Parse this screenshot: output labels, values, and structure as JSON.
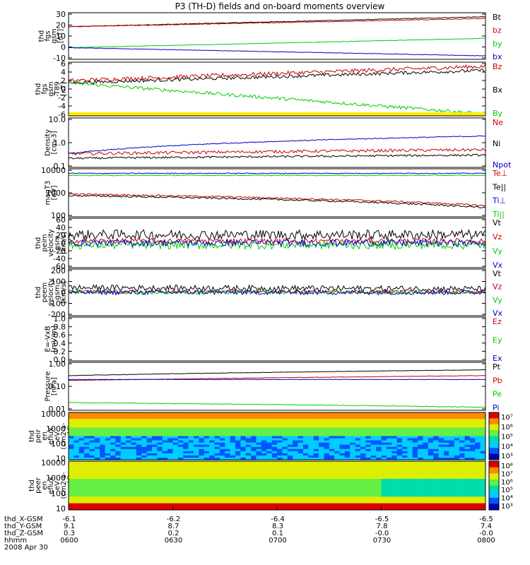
{
  "title": "P3 (TH-D) fields and on-board moments overview",
  "chart_data": [
    {
      "type": "line",
      "ylabel": [
        "thd",
        "fgs",
        "gsm",
        "[nT]"
      ],
      "yticks": [
        "30",
        "20",
        "10",
        "0",
        "-10"
      ],
      "ylim": [
        -10,
        30
      ],
      "series": [
        {
          "name": "Bt",
          "color": "#000000",
          "start": 18,
          "end": 26.5,
          "noise": 0.3
        },
        {
          "name": "bz",
          "color": "#cc0000",
          "start": 18,
          "end": 25,
          "noise": 0.3
        },
        {
          "name": "by",
          "color": "#00cc00",
          "start": 0,
          "end": 8,
          "noise": 0.2
        },
        {
          "name": "bx",
          "color": "#0000cc",
          "start": 0,
          "end": -7,
          "noise": 0.2
        }
      ]
    },
    {
      "type": "line",
      "ylabel": [
        "thd",
        "fgs",
        "gsm",
        "-T89",
        "[nT]"
      ],
      "yticks": [
        "6",
        "4",
        "2",
        "0",
        "-2",
        "-4",
        "-6"
      ],
      "ylim": [
        -7,
        6
      ],
      "series": [
        {
          "name": "Bz",
          "color": "#cc0000",
          "start": 1.5,
          "end": 5,
          "noise": 0.5
        },
        {
          "name": "Bx",
          "color": "#000000",
          "start": 1,
          "end": 4,
          "noise": 0.4
        },
        {
          "name": "By",
          "color": "#00cc00",
          "start": 1,
          "end": -6.5,
          "noise": 0.4
        }
      ]
    },
    {
      "type": "line",
      "ylabel": [
        "Density",
        "[cm-3]"
      ],
      "yticks": [
        "10.0",
        "1.0",
        "0.1"
      ],
      "ylim": [
        0.1,
        15
      ],
      "log": true,
      "series": [
        {
          "name": "Ne",
          "color": "#cc0000",
          "start": 0.4,
          "end": 0.6,
          "noise": 0.15
        },
        {
          "name": "Ni",
          "color": "#000000",
          "start": 0.25,
          "end": 0.35,
          "noise": 0.1
        },
        {
          "name": "Npot",
          "color": "#0000cc",
          "start": 0.4,
          "end": 2.4,
          "noise": 0.05
        }
      ]
    },
    {
      "type": "line",
      "ylabel": [
        "magT3",
        "[eV]"
      ],
      "yticks": [
        "10000",
        "1000",
        "100"
      ],
      "ylim": [
        40,
        12000
      ],
      "log": true,
      "series": [
        {
          "name": "Te⊥",
          "color": "#cc0000",
          "start": 600,
          "end": 150,
          "noise": 0.1
        },
        {
          "name": "Te||",
          "color": "#000000",
          "start": 500,
          "end": 120,
          "noise": 0.1
        },
        {
          "name": "Ti⊥",
          "color": "#0000cc",
          "start": 7000,
          "end": 7000,
          "noise": 0.05
        },
        {
          "name": "Ti||",
          "color": "#00cc00",
          "start": 5500,
          "end": 5500,
          "noise": 0.05
        }
      ]
    },
    {
      "type": "line",
      "ylabel": [
        "thd",
        "peim",
        "velocity",
        "gsm",
        "[km/s]"
      ],
      "yticks": [
        "60",
        "40",
        "20",
        "0",
        "-20",
        "-40",
        "-60"
      ],
      "ylim": [
        -60,
        60
      ],
      "series": [
        {
          "name": "Vt",
          "color": "#000000",
          "start": 20,
          "end": 20,
          "noise": 12
        },
        {
          "name": "Vz",
          "color": "#cc0000",
          "start": 5,
          "end": 5,
          "noise": 6
        },
        {
          "name": "Vy",
          "color": "#00cc00",
          "start": -5,
          "end": -5,
          "noise": 10
        },
        {
          "name": "Vx",
          "color": "#0000cc",
          "start": 0,
          "end": 0,
          "noise": 8
        }
      ]
    },
    {
      "type": "line",
      "ylabel": [
        "thd",
        "peem",
        "velocity",
        "gsm",
        "[km/s]"
      ],
      "yticks": [
        "200",
        "100",
        "0",
        "-100",
        "-200"
      ],
      "ylim": [
        -200,
        200
      ],
      "series": [
        {
          "name": "Vt",
          "color": "#000000",
          "start": 40,
          "end": 30,
          "noise": 25
        },
        {
          "name": "Vz",
          "color": "#cc0000",
          "start": 5,
          "end": 5,
          "noise": 15
        },
        {
          "name": "Vy",
          "color": "#00cc00",
          "start": 0,
          "end": 0,
          "noise": 15
        },
        {
          "name": "Vx",
          "color": "#0000cc",
          "start": 0,
          "end": 0,
          "noise": 20
        }
      ]
    },
    {
      "type": "line",
      "ylabel": [
        "E=-VxB",
        "[mV/m]"
      ],
      "yticks": [
        "1.0",
        "0.8",
        "0.6",
        "0.4",
        "0.2",
        "0.0"
      ],
      "ylim": [
        0,
        1
      ],
      "series": [
        {
          "name": "Ez",
          "color": "#cc0000",
          "values": []
        },
        {
          "name": "Ey",
          "color": "#00cc00",
          "values": []
        },
        {
          "name": "Ex",
          "color": "#0000cc",
          "values": []
        }
      ]
    },
    {
      "type": "line",
      "ylabel": [
        "Pressure",
        "[nPa]"
      ],
      "yticks": [
        "1.00",
        "0.10",
        "0.01"
      ],
      "ylim": [
        0.008,
        1.2
      ],
      "log": true,
      "series": [
        {
          "name": "Pt",
          "color": "#000000",
          "start": 0.3,
          "end": 0.55,
          "noise": 0.02
        },
        {
          "name": "Pb",
          "color": "#cc0000",
          "start": 0.18,
          "end": 0.3,
          "noise": 0.02
        },
        {
          "name": "Pe",
          "color": "#00cc00",
          "start": 0.018,
          "end": 0.011,
          "noise": 0.03
        },
        {
          "name": "Pi",
          "color": "#0000cc",
          "start": 0.2,
          "end": 0.2,
          "noise": 0.02
        }
      ]
    },
    {
      "type": "heatmap",
      "ylabel": [
        "thd",
        "peir",
        "en",
        "eflux",
        "eV",
        "(cm2-s-",
        "sr-eV)"
      ],
      "yticks": [
        "10000",
        "1000",
        "100",
        "10"
      ],
      "colorbar_ticks": [
        "10⁷",
        "10⁶",
        "10⁵",
        "10⁴",
        "10³"
      ]
    },
    {
      "type": "heatmap",
      "ylabel": [
        "thd",
        "peer",
        "en",
        "eflux",
        "eV",
        "(cm2-s-",
        "sr-eV)"
      ],
      "yticks": [
        "10000",
        "1000",
        "100",
        "10"
      ],
      "colorbar_ticks": [
        "10⁸",
        "10⁷",
        "10⁶",
        "10⁵",
        "10⁴",
        "10³"
      ]
    }
  ],
  "x_axis": {
    "row_labels": [
      "thd_X-GSM",
      "thd_Y-GSM",
      "thd_Z-GSM",
      "hhmm",
      "2008 Apr 30"
    ],
    "ticks": [
      {
        "X": "-6.1",
        "Y": "9.1",
        "Z": "0.3",
        "hhmm": "0600"
      },
      {
        "X": "-6.2",
        "Y": "8.7",
        "Z": "0.2",
        "hhmm": "0630"
      },
      {
        "X": "-6.4",
        "Y": "8.3",
        "Z": "0.1",
        "hhmm": "0700"
      },
      {
        "X": "-6.5",
        "Y": "7.8",
        "Z": "-0.0",
        "hhmm": "0730"
      },
      {
        "X": "-6.5",
        "Y": "7.4",
        "Z": "-0.0",
        "hhmm": "0800"
      }
    ]
  }
}
